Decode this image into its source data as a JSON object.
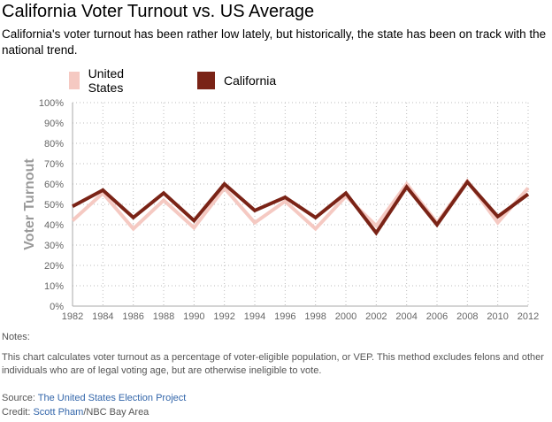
{
  "header": {
    "title": "California Voter Turnout vs. US Average",
    "subtitle": "California's voter turnout has been rather low lately, but historically, the state has been on track with the national trend."
  },
  "legend": [
    {
      "label": "United States",
      "color": "#f5c9c2"
    },
    {
      "label": "California",
      "color": "#7a2316"
    }
  ],
  "chart_data": {
    "type": "line",
    "x": [
      "1982",
      "1984",
      "1986",
      "1988",
      "1990",
      "1992",
      "1994",
      "1996",
      "1998",
      "2000",
      "2002",
      "2004",
      "2006",
      "2008",
      "2010",
      "2012"
    ],
    "series": [
      {
        "name": "United States",
        "color": "#f5c9c2",
        "values": [
          42,
          55.5,
          38,
          52,
          38.5,
          58,
          41,
          51.5,
          38,
          54,
          39.5,
          60,
          41,
          61.5,
          41,
          58
        ]
      },
      {
        "name": "California",
        "color": "#7a2316",
        "values": [
          49,
          57,
          43.5,
          55.5,
          42,
          60,
          47,
          53.5,
          43.5,
          55.5,
          36,
          58.5,
          40,
          61,
          44,
          55
        ]
      }
    ],
    "ylabel": "Voter Turnout",
    "xlabel": "",
    "ylim": [
      0,
      100
    ],
    "y_ticks": [
      "0%",
      "10%",
      "20%",
      "30%",
      "40%",
      "50%",
      "60%",
      "70%",
      "80%",
      "90%",
      "100%"
    ],
    "grid": true
  },
  "notes": {
    "heading": "Notes:",
    "body": "This chart calculates voter turnout as a percentage of voter-eligible population, or VEP. This method excludes felons and other individuals who are of legal voting age, but are otherwise ineligible to vote."
  },
  "credits": {
    "source_label": "Source: ",
    "source_link": "The United States Election Project",
    "credit_label": "Credit: ",
    "credit_link": "Scott Pham",
    "credit_suffix": "/NBC Bay Area"
  }
}
